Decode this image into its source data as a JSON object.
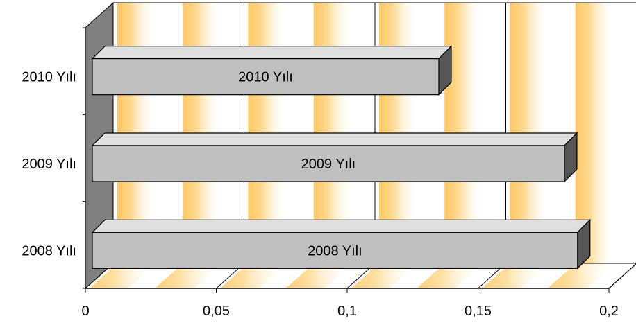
{
  "chart_data": {
    "type": "bar",
    "orientation": "horizontal",
    "three_d": true,
    "categories": [
      "2008 Yılı",
      "2009 Yılı",
      "2010 Yılı"
    ],
    "values": [
      0.188,
      0.183,
      0.135
    ],
    "bar_labels": [
      "2008 Yılı",
      "2009 Yılı",
      "2010 Yılı"
    ],
    "x_ticks": [
      "0",
      "0,05",
      "0,1",
      "0,15",
      "0,2"
    ],
    "xlim": [
      0,
      0.2
    ],
    "title": "",
    "xlabel": "",
    "ylabel": "",
    "grid": true,
    "legend": "none",
    "colors": {
      "bar_face": "#c0c0c0",
      "bar_top": "#e0e0e0",
      "bar_side": "#555555",
      "left_wall": "#808080",
      "stripe": "#ffc766",
      "outline": "#000000"
    }
  }
}
